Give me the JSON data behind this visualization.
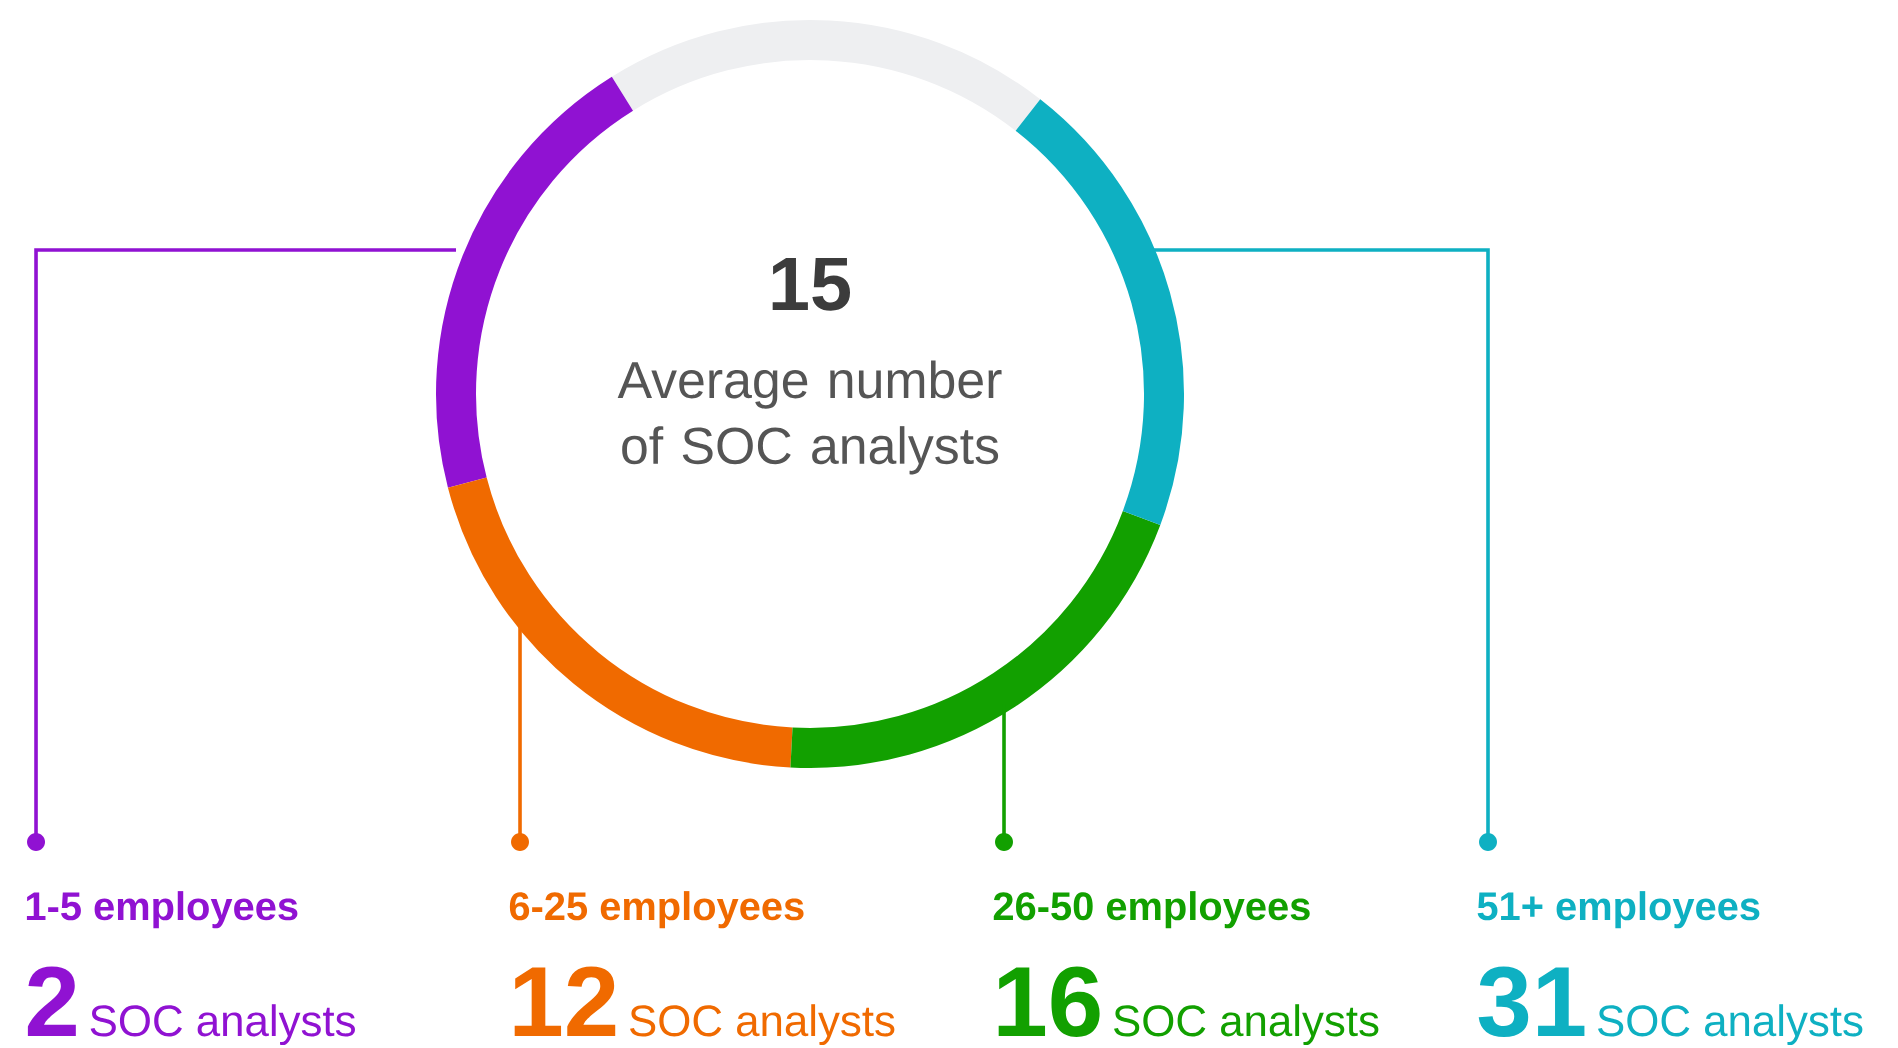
{
  "chart_data": {
    "type": "other",
    "title": "15",
    "subtitle": "Average number of SOC analysts",
    "categories": [
      "1-5 employees",
      "6-25 employees",
      "26-50 employees",
      "51+ employees"
    ],
    "values": [
      2,
      12,
      16,
      31
    ],
    "data_labels": true,
    "colors": [
      "#9012d2",
      "#f06a00",
      "#12a000",
      "#0eb0c2"
    ],
    "annotations": [
      "SOC analysts",
      "SOC analysts",
      "SOC analysts",
      "SOC analysts"
    ]
  }
}
